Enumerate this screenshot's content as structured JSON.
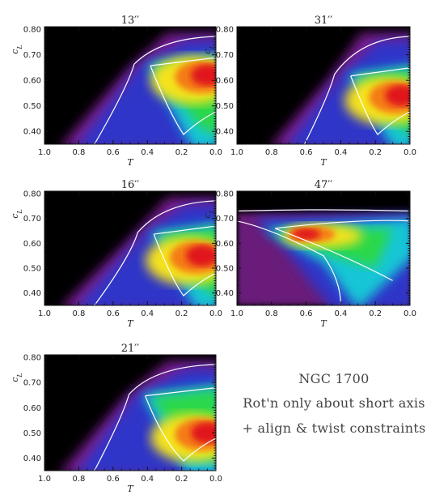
{
  "figure": {
    "note_lines": [
      "NGC 1700",
      "Rot'n only about short axis",
      "+ align & twist constraints"
    ]
  },
  "chart_data": [
    {
      "type": "heatmap",
      "title": "13′′",
      "xlabel": "T",
      "ylabel": "c_L",
      "xlim": [
        1.0,
        0.0
      ],
      "ylim": [
        0.35,
        0.81
      ],
      "x_ticks": [
        "1.0",
        "0.8",
        "0.6",
        "0.4",
        "0.2",
        "0.0"
      ],
      "y_ticks": [
        "0.40",
        "0.50",
        "0.60",
        "0.70",
        "0.80"
      ],
      "colormap": "rainbow (black-purple-blue-cyan-green-yellow-red)",
      "contour_color": "#ffffff",
      "peak": {
        "T": 0.05,
        "c_L": 0.62
      },
      "ridge": {
        "start_T": 0.85,
        "start_c_L": 0.36,
        "turn_T": 0.42,
        "turn_c_L": 0.67
      }
    },
    {
      "type": "heatmap",
      "title": "31′′",
      "xlabel": "T",
      "ylabel": "c_L",
      "xlim": [
        1.0,
        0.0
      ],
      "ylim": [
        0.35,
        0.81
      ],
      "x_ticks": [
        "1.0",
        "0.8",
        "0.6",
        "0.4",
        "0.2",
        "0.0"
      ],
      "y_ticks": [
        "0.40",
        "0.50",
        "0.60",
        "0.70",
        "0.80"
      ],
      "colormap": "rainbow (black-purple-blue-cyan-green-yellow-red)",
      "contour_color": "#ffffff",
      "peak": {
        "T": 0.05,
        "c_L": 0.54
      },
      "ridge": {
        "start_T": 0.75,
        "start_c_L": 0.36,
        "turn_T": 0.38,
        "turn_c_L": 0.63
      }
    },
    {
      "type": "heatmap",
      "title": "16′′",
      "xlabel": "T",
      "ylabel": "c_L",
      "xlim": [
        1.0,
        0.0
      ],
      "ylim": [
        0.35,
        0.81
      ],
      "x_ticks": [
        "1.0",
        "0.8",
        "0.6",
        "0.4",
        "0.2",
        "0.0"
      ],
      "y_ticks": [
        "0.40",
        "0.50",
        "0.60",
        "0.70",
        "0.80"
      ],
      "colormap": "rainbow (black-purple-blue-cyan-green-yellow-red)",
      "contour_color": "#ffffff",
      "peak": {
        "T": 0.08,
        "c_L": 0.55
      },
      "ridge": {
        "start_T": 0.85,
        "start_c_L": 0.36,
        "turn_T": 0.4,
        "turn_c_L": 0.65
      }
    },
    {
      "type": "heatmap",
      "title": "47′′",
      "xlabel": "T",
      "ylabel": "c_L",
      "xlim": [
        1.0,
        0.0
      ],
      "ylim": [
        0.35,
        0.81
      ],
      "x_ticks": [
        "1.0",
        "0.8",
        "0.6",
        "0.4",
        "0.2",
        "0.0"
      ],
      "y_ticks": [
        "0.40",
        "0.50",
        "0.60",
        "0.70",
        "0.80"
      ],
      "colormap": "rainbow (black-purple-blue-cyan-green-yellow-red)",
      "contour_color": "#ffffff",
      "peak": {
        "T": 0.6,
        "c_L": 0.63
      },
      "ridge": {
        "start_T": 0.7,
        "start_c_L": 0.4,
        "turn_T": 0.6,
        "turn_c_L": 0.63
      }
    },
    {
      "type": "heatmap",
      "title": "21′′",
      "xlabel": "T",
      "ylabel": "c_L",
      "xlim": [
        1.0,
        0.0
      ],
      "ylim": [
        0.35,
        0.81
      ],
      "x_ticks": [
        "1.0",
        "0.8",
        "0.6",
        "0.4",
        "0.2",
        "0.0"
      ],
      "y_ticks": [
        "0.40",
        "0.50",
        "0.60",
        "0.70",
        "0.80"
      ],
      "colormap": "rainbow (black-purple-blue-cyan-green-yellow-red)",
      "contour_color": "#ffffff",
      "peak": {
        "T": 0.05,
        "c_L": 0.5
      },
      "ridge": {
        "start_T": 0.85,
        "start_c_L": 0.36,
        "turn_T": 0.45,
        "turn_c_L": 0.66
      }
    }
  ]
}
